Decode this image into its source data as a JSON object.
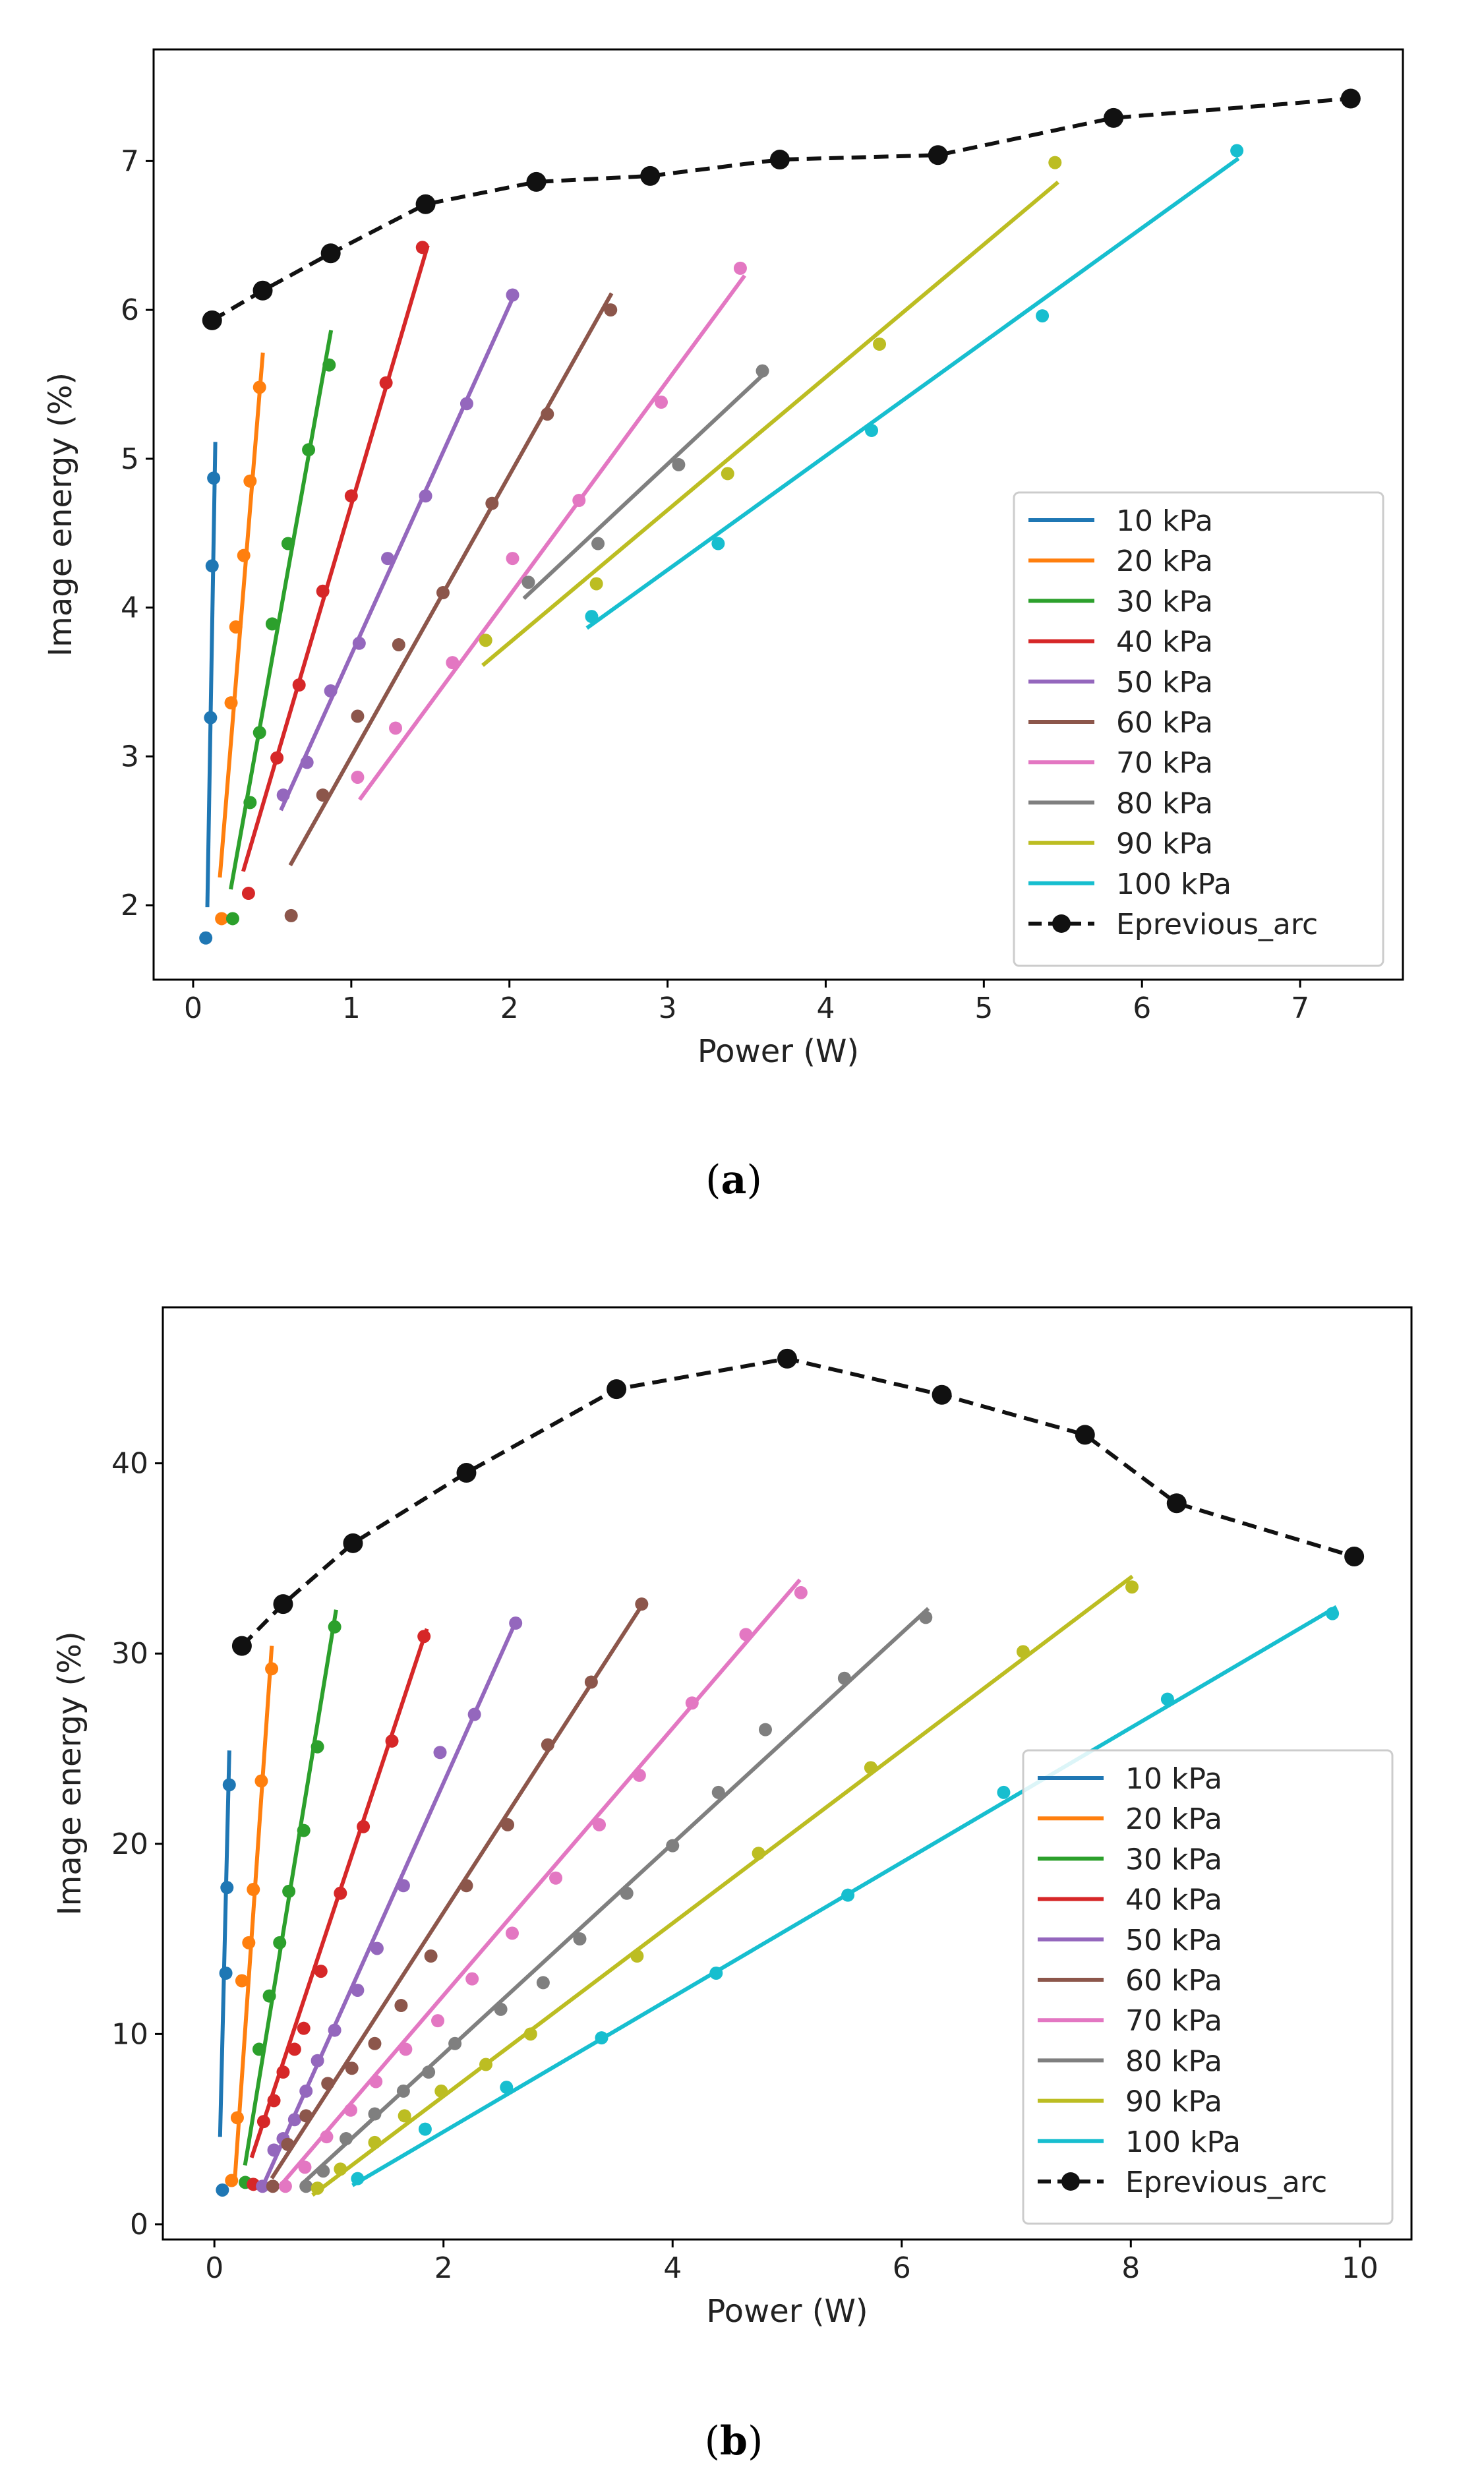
{
  "figure": {
    "caption_a": "a",
    "caption_b": "b"
  },
  "colors": {
    "10 kPa": "#1f77b4",
    "20 kPa": "#ff7f0e",
    "30 kPa": "#2ca02c",
    "40 kPa": "#d62728",
    "50 kPa": "#9467bd",
    "60 kPa": "#8c564b",
    "70 kPa": "#e377c2",
    "80 kPa": "#7f7f7f",
    "90 kPa": "#bcbd22",
    "100 kPa": "#17becf",
    "Eprevious_arc": "#000000"
  },
  "chart_data": [
    {
      "id": "a",
      "type": "scatter",
      "xlabel": "Power (W)",
      "ylabel": "Image energy (%)",
      "xlim": [
        -0.25,
        7.65
      ],
      "ylim": [
        1.5,
        7.75
      ],
      "xticks": [
        0,
        1,
        2,
        3,
        4,
        5,
        6,
        7
      ],
      "yticks": [
        2,
        3,
        4,
        5,
        6,
        7
      ],
      "legend_position": "lower-right",
      "series": [
        {
          "name": "10 kPa",
          "points": [
            [
              0.08,
              1.78
            ],
            [
              0.11,
              3.26
            ],
            [
              0.12,
              4.28
            ],
            [
              0.13,
              4.87
            ]
          ],
          "fit": [
            [
              0.09,
              2.0
            ],
            [
              0.14,
              5.1
            ]
          ]
        },
        {
          "name": "20 kPa",
          "points": [
            [
              0.18,
              1.91
            ],
            [
              0.24,
              3.36
            ],
            [
              0.27,
              3.87
            ],
            [
              0.32,
              4.35
            ],
            [
              0.36,
              4.85
            ],
            [
              0.42,
              5.48
            ]
          ],
          "fit": [
            [
              0.17,
              2.2
            ],
            [
              0.44,
              5.7
            ]
          ]
        },
        {
          "name": "30 kPa",
          "points": [
            [
              0.25,
              1.91
            ],
            [
              0.36,
              2.69
            ],
            [
              0.42,
              3.16
            ],
            [
              0.5,
              3.89
            ],
            [
              0.6,
              4.43
            ],
            [
              0.73,
              5.06
            ],
            [
              0.86,
              5.63
            ]
          ],
          "fit": [
            [
              0.24,
              2.12
            ],
            [
              0.87,
              5.85
            ]
          ]
        },
        {
          "name": "40 kPa",
          "points": [
            [
              0.35,
              2.08
            ],
            [
              0.53,
              2.99
            ],
            [
              0.67,
              3.48
            ],
            [
              0.82,
              4.11
            ],
            [
              1.0,
              4.75
            ],
            [
              1.22,
              5.51
            ],
            [
              1.45,
              6.42
            ]
          ],
          "fit": [
            [
              0.32,
              2.24
            ],
            [
              1.48,
              6.42
            ]
          ]
        },
        {
          "name": "50 kPa",
          "points": [
            [
              0.57,
              2.74
            ],
            [
              0.72,
              2.96
            ],
            [
              0.87,
              3.44
            ],
            [
              1.05,
              3.76
            ],
            [
              1.23,
              4.33
            ],
            [
              1.47,
              4.75
            ],
            [
              1.73,
              5.37
            ],
            [
              2.02,
              6.1
            ]
          ],
          "fit": [
            [
              0.56,
              2.65
            ],
            [
              2.03,
              6.1
            ]
          ]
        },
        {
          "name": "60 kPa",
          "points": [
            [
              0.62,
              1.93
            ],
            [
              0.82,
              2.74
            ],
            [
              1.04,
              3.27
            ],
            [
              1.3,
              3.75
            ],
            [
              1.58,
              4.1
            ],
            [
              1.89,
              4.7
            ],
            [
              2.24,
              5.3
            ],
            [
              2.64,
              6.0
            ]
          ],
          "fit": [
            [
              0.62,
              2.28
            ],
            [
              2.64,
              6.1
            ]
          ]
        },
        {
          "name": "70 kPa",
          "points": [
            [
              1.04,
              2.86
            ],
            [
              1.28,
              3.19
            ],
            [
              1.64,
              3.63
            ],
            [
              2.02,
              4.33
            ],
            [
              2.44,
              4.72
            ],
            [
              2.96,
              5.38
            ],
            [
              3.46,
              6.28
            ]
          ],
          "fit": [
            [
              1.06,
              2.72
            ],
            [
              3.48,
              6.22
            ]
          ]
        },
        {
          "name": "80 kPa",
          "points": [
            [
              2.12,
              4.17
            ],
            [
              2.56,
              4.43
            ],
            [
              3.07,
              4.96
            ],
            [
              3.6,
              5.59
            ]
          ],
          "fit": [
            [
              2.1,
              4.07
            ],
            [
              3.6,
              5.56
            ]
          ]
        },
        {
          "name": "90 kPa",
          "points": [
            [
              1.85,
              3.78
            ],
            [
              2.55,
              4.16
            ],
            [
              3.38,
              4.9
            ],
            [
              4.34,
              5.77
            ],
            [
              5.45,
              6.99
            ]
          ],
          "fit": [
            [
              1.84,
              3.62
            ],
            [
              5.46,
              6.85
            ]
          ]
        },
        {
          "name": "100 kPa",
          "points": [
            [
              2.52,
              3.94
            ],
            [
              3.32,
              4.43
            ],
            [
              4.29,
              5.19
            ],
            [
              5.37,
              5.96
            ],
            [
              6.6,
              7.07
            ]
          ],
          "fit": [
            [
              2.5,
              3.87
            ],
            [
              6.6,
              7.01
            ]
          ]
        }
      ],
      "previous": {
        "name": "Eprevious_arc",
        "points": [
          [
            0.12,
            5.93
          ],
          [
            0.44,
            6.13
          ],
          [
            0.87,
            6.38
          ],
          [
            1.47,
            6.71
          ],
          [
            2.17,
            6.86
          ],
          [
            2.89,
            6.9
          ],
          [
            3.71,
            7.01
          ],
          [
            4.71,
            7.04
          ],
          [
            5.82,
            7.29
          ],
          [
            7.32,
            7.42
          ]
        ]
      }
    },
    {
      "id": "b",
      "type": "scatter",
      "xlabel": "Power (W)",
      "ylabel": "Image energy (%)",
      "xlim": [
        -0.45,
        10.45
      ],
      "ylim": [
        -0.8,
        48.2
      ],
      "xticks": [
        0,
        2,
        4,
        6,
        8,
        10
      ],
      "yticks": [
        0,
        10,
        20,
        30,
        40
      ],
      "legend_position": "lower-right",
      "series": [
        {
          "name": "10 kPa",
          "points": [
            [
              0.07,
              1.8
            ],
            [
              0.1,
              13.2
            ],
            [
              0.11,
              17.7
            ],
            [
              0.13,
              23.1
            ]
          ],
          "fit": [
            [
              0.05,
              4.7
            ],
            [
              0.13,
              24.8
            ]
          ]
        },
        {
          "name": "20 kPa",
          "points": [
            [
              0.15,
              2.3
            ],
            [
              0.2,
              5.6
            ],
            [
              0.24,
              12.8
            ],
            [
              0.3,
              14.8
            ],
            [
              0.34,
              17.6
            ],
            [
              0.41,
              23.3
            ],
            [
              0.5,
              29.2
            ]
          ],
          "fit": [
            [
              0.18,
              2.5
            ],
            [
              0.5,
              30.3
            ]
          ]
        },
        {
          "name": "30 kPa",
          "points": [
            [
              0.27,
              2.2
            ],
            [
              0.39,
              9.2
            ],
            [
              0.48,
              12.0
            ],
            [
              0.57,
              14.8
            ],
            [
              0.65,
              17.5
            ],
            [
              0.78,
              20.7
            ],
            [
              0.9,
              25.1
            ],
            [
              1.05,
              31.4
            ]
          ],
          "fit": [
            [
              0.27,
              3.2
            ],
            [
              1.06,
              32.2
            ]
          ]
        },
        {
          "name": "40 kPa",
          "points": [
            [
              0.34,
              2.1
            ],
            [
              0.43,
              5.4
            ],
            [
              0.52,
              6.5
            ],
            [
              0.6,
              8.0
            ],
            [
              0.7,
              9.2
            ],
            [
              0.78,
              10.3
            ],
            [
              0.93,
              13.3
            ],
            [
              1.1,
              17.4
            ],
            [
              1.3,
              20.9
            ],
            [
              1.55,
              25.4
            ],
            [
              1.83,
              30.9
            ]
          ],
          "fit": [
            [
              0.33,
              3.6
            ],
            [
              1.85,
              31.2
            ]
          ]
        },
        {
          "name": "50 kPa",
          "points": [
            [
              0.42,
              2.0
            ],
            [
              0.52,
              3.9
            ],
            [
              0.6,
              4.5
            ],
            [
              0.7,
              5.5
            ],
            [
              0.8,
              7.0
            ],
            [
              0.9,
              8.6
            ],
            [
              1.05,
              10.2
            ],
            [
              1.25,
              12.3
            ],
            [
              1.42,
              14.5
            ],
            [
              1.65,
              17.8
            ],
            [
              1.97,
              24.8
            ],
            [
              2.27,
              26.8
            ],
            [
              2.63,
              31.6
            ]
          ],
          "fit": [
            [
              0.43,
              2.1
            ],
            [
              2.64,
              31.8
            ]
          ]
        },
        {
          "name": "60 kPa",
          "points": [
            [
              0.51,
              2.0
            ],
            [
              0.64,
              4.2
            ],
            [
              0.8,
              5.7
            ],
            [
              0.99,
              7.4
            ],
            [
              1.2,
              8.2
            ],
            [
              1.4,
              9.5
            ],
            [
              1.63,
              11.5
            ],
            [
              1.89,
              14.1
            ],
            [
              2.2,
              17.8
            ],
            [
              2.56,
              21.0
            ],
            [
              2.91,
              25.2
            ],
            [
              3.29,
              28.5
            ],
            [
              3.73,
              32.6
            ]
          ],
          "fit": [
            [
              0.51,
              2.5
            ],
            [
              3.75,
              32.7
            ]
          ]
        },
        {
          "name": "70 kPa",
          "points": [
            [
              0.62,
              2.0
            ],
            [
              0.79,
              3.0
            ],
            [
              0.98,
              4.6
            ],
            [
              1.19,
              6.0
            ],
            [
              1.41,
              7.5
            ],
            [
              1.67,
              9.2
            ],
            [
              1.95,
              10.7
            ],
            [
              2.25,
              12.9
            ],
            [
              2.6,
              15.3
            ],
            [
              2.98,
              18.2
            ],
            [
              3.36,
              21.0
            ],
            [
              3.71,
              23.6
            ],
            [
              4.17,
              27.4
            ],
            [
              4.64,
              31.0
            ],
            [
              5.12,
              33.2
            ]
          ],
          "fit": [
            [
              0.6,
              2.2
            ],
            [
              5.1,
              33.8
            ]
          ]
        },
        {
          "name": "80 kPa",
          "points": [
            [
              0.8,
              2.0
            ],
            [
              0.95,
              2.8
            ],
            [
              1.15,
              4.5
            ],
            [
              1.4,
              5.8
            ],
            [
              1.65,
              7.0
            ],
            [
              1.87,
              8.0
            ],
            [
              2.1,
              9.5
            ],
            [
              2.5,
              11.3
            ],
            [
              2.87,
              12.7
            ],
            [
              3.19,
              15.0
            ],
            [
              3.6,
              17.4
            ],
            [
              4.0,
              19.9
            ],
            [
              4.4,
              22.7
            ],
            [
              4.81,
              26.0
            ],
            [
              5.5,
              28.7
            ],
            [
              6.21,
              31.9
            ]
          ],
          "fit": [
            [
              0.78,
              2.2
            ],
            [
              6.22,
              32.3
            ]
          ]
        },
        {
          "name": "90 kPa",
          "points": [
            [
              0.9,
              1.9
            ],
            [
              1.1,
              2.9
            ],
            [
              1.4,
              4.3
            ],
            [
              1.66,
              5.7
            ],
            [
              1.98,
              7.0
            ],
            [
              2.37,
              8.4
            ],
            [
              2.76,
              10.0
            ],
            [
              3.69,
              14.1
            ],
            [
              4.75,
              19.5
            ],
            [
              5.73,
              24.0
            ],
            [
              7.06,
              30.1
            ],
            [
              8.01,
              33.5
            ]
          ],
          "fit": [
            [
              0.87,
              1.6
            ],
            [
              8.0,
              34.0
            ]
          ]
        },
        {
          "name": "100 kPa",
          "points": [
            [
              1.25,
              2.4
            ],
            [
              1.84,
              5.0
            ],
            [
              2.55,
              7.2
            ],
            [
              3.38,
              9.8
            ],
            [
              4.38,
              13.2
            ],
            [
              5.53,
              17.3
            ],
            [
              6.89,
              22.7
            ],
            [
              8.32,
              27.6
            ],
            [
              9.76,
              32.1
            ]
          ],
          "fit": [
            [
              1.22,
              2.1
            ],
            [
              9.78,
              32.4
            ]
          ]
        }
      ],
      "previous": {
        "name": "Eprevious_arc",
        "points": [
          [
            0.24,
            30.4
          ],
          [
            0.6,
            32.6
          ],
          [
            1.21,
            35.8
          ],
          [
            2.2,
            39.5
          ],
          [
            3.51,
            43.9
          ],
          [
            5.0,
            45.5
          ],
          [
            6.35,
            43.6
          ],
          [
            7.6,
            41.5
          ],
          [
            8.4,
            37.9
          ],
          [
            9.95,
            35.1
          ]
        ]
      }
    }
  ]
}
